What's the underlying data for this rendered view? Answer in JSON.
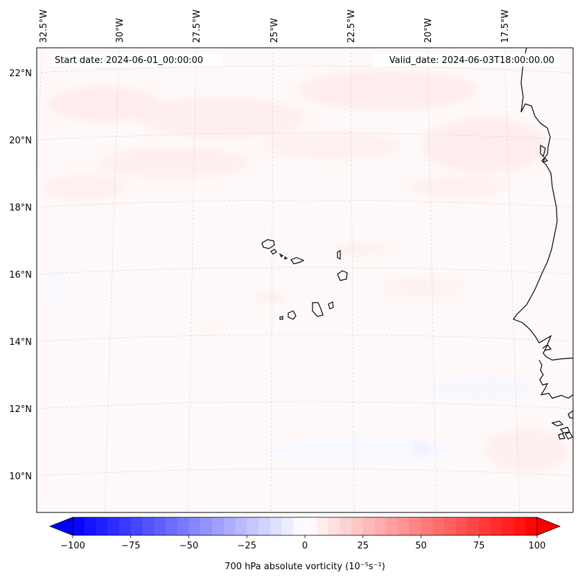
{
  "header": {
    "start_date": "Start date: 2024-06-01_00:00:00",
    "valid_date": "Valid_date: 2024-06-03T18:00:00.00"
  },
  "lon_labels": [
    "32.5°W",
    "30°W",
    "27.5°W",
    "25°W",
    "22.5°W",
    "20°W",
    "17.5°W"
  ],
  "lat_labels": [
    "22°N",
    "20°N",
    "18°N",
    "16°N",
    "14°N",
    "12°N",
    "10°N"
  ],
  "colorbar": {
    "label": "700 hPa absolute vorticity (10⁻⁵s⁻¹)",
    "min": -100,
    "max": 100,
    "levels": 40,
    "ticks": [
      "−100",
      "−75",
      "−50",
      "−25",
      "0",
      "25",
      "50",
      "75",
      "100"
    ],
    "colors": {
      "negative": "#0000ff",
      "neutral": "#ffffff",
      "positive": "#ff0000"
    }
  },
  "map": {
    "field": "700 hPa absolute vorticity",
    "features": [
      "Cape Verde islands",
      "West African coastline"
    ]
  }
}
